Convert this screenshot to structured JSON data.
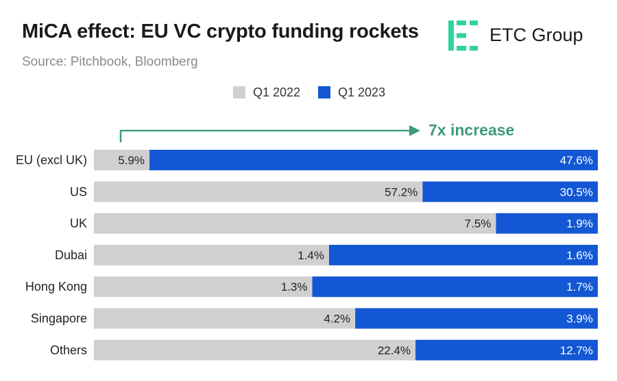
{
  "header": {
    "title": "MiCA effect: EU VC crypto funding rockets",
    "subtitle": "Source: Pitchbook, Bloomberg"
  },
  "logo": {
    "text": "ETC Group",
    "icon": "etc-group-logo-icon",
    "color": "#2fd3a0"
  },
  "colors": {
    "q1_2022": "#d0d0d0",
    "q1_2023": "#1457d4",
    "annotation": "#3f9a7c",
    "label_dark": "#222222",
    "label_light": "#ffffff"
  },
  "chart_data": {
    "type": "bar",
    "orientation": "horizontal",
    "stacked": true,
    "normalized": true,
    "title": "MiCA effect: EU VC crypto funding rockets",
    "subtitle": "Source: Pitchbook, Bloomberg",
    "categories": [
      "EU (excl UK)",
      "US",
      "UK",
      "Dubai",
      "Hong Kong",
      "Singapore",
      "Others"
    ],
    "series": [
      {
        "name": "Q1 2022",
        "values": [
          5.9,
          57.2,
          7.5,
          1.4,
          1.3,
          4.2,
          22.4
        ],
        "labels": [
          "5.9%",
          "57.2%",
          "7.5%",
          "1.4%",
          "1.3%",
          "4.2%",
          "22.4%"
        ]
      },
      {
        "name": "Q1 2023",
        "values": [
          47.6,
          30.5,
          1.9,
          1.6,
          1.7,
          3.9,
          12.7
        ],
        "labels": [
          "47.6%",
          "30.5%",
          "1.9%",
          "1.6%",
          "1.7%",
          "3.9%",
          "12.7%"
        ]
      }
    ],
    "legend": "top-center",
    "grid": false,
    "annotation": "7x increase"
  }
}
